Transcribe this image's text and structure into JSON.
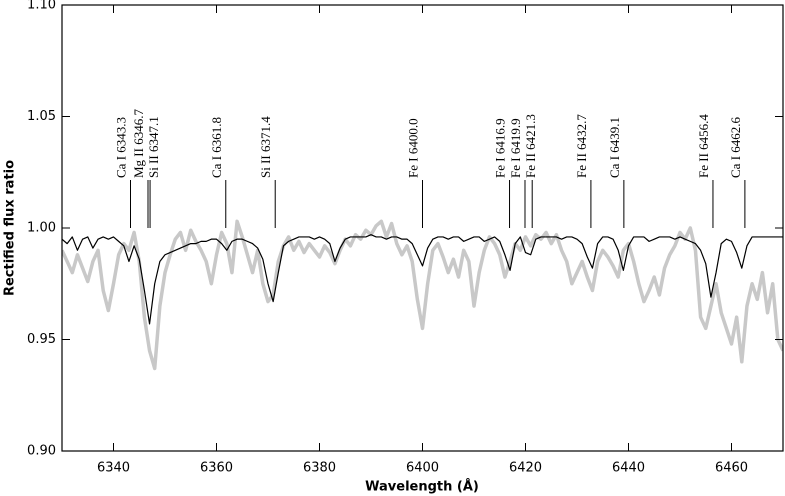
{
  "chart_data": {
    "type": "line",
    "xlabel": "Wavelength (Å)",
    "ylabel": "Rectified flux ratio",
    "xlim": [
      6330,
      6470
    ],
    "ylim": [
      0.9,
      1.1
    ],
    "xticks": [
      6340,
      6360,
      6380,
      6400,
      6420,
      6440,
      6460
    ],
    "yticks": [
      {
        "value": 0.9,
        "label": "0.90"
      },
      {
        "value": 0.95,
        "label": "0.95"
      },
      {
        "value": 1.0,
        "label": "1.00"
      },
      {
        "value": 1.05,
        "label": "1.05"
      },
      {
        "value": 1.1,
        "label": "1.10"
      }
    ],
    "x": [
      6330,
      6331,
      6332,
      6333,
      6334,
      6335,
      6336,
      6337,
      6338,
      6339,
      6340,
      6341,
      6342,
      6343,
      6344,
      6345,
      6346,
      6347,
      6348,
      6349,
      6350,
      6351,
      6352,
      6353,
      6354,
      6355,
      6356,
      6357,
      6358,
      6359,
      6360,
      6361,
      6362,
      6363,
      6364,
      6365,
      6366,
      6367,
      6368,
      6369,
      6370,
      6371,
      6372,
      6373,
      6374,
      6375,
      6376,
      6377,
      6378,
      6379,
      6380,
      6381,
      6382,
      6383,
      6384,
      6385,
      6386,
      6387,
      6388,
      6389,
      6390,
      6391,
      6392,
      6393,
      6394,
      6395,
      6396,
      6397,
      6398,
      6399,
      6400,
      6401,
      6402,
      6403,
      6404,
      6405,
      6406,
      6407,
      6408,
      6409,
      6410,
      6411,
      6412,
      6413,
      6414,
      6415,
      6416,
      6417,
      6418,
      6419,
      6420,
      6421,
      6422,
      6423,
      6424,
      6425,
      6426,
      6427,
      6428,
      6429,
      6430,
      6431,
      6432,
      6433,
      6434,
      6435,
      6436,
      6437,
      6438,
      6439,
      6440,
      6441,
      6442,
      6443,
      6444,
      6445,
      6446,
      6447,
      6448,
      6449,
      6450,
      6451,
      6452,
      6453,
      6454,
      6455,
      6456,
      6457,
      6458,
      6459,
      6460,
      6461,
      6462,
      6463,
      6464,
      6465,
      6466,
      6467,
      6468,
      6469,
      6470
    ],
    "series": [
      {
        "color": "#c8c8c8",
        "width": 3.5,
        "values": [
          0.99,
          0.985,
          0.98,
          0.988,
          0.982,
          0.976,
          0.985,
          0.99,
          0.972,
          0.963,
          0.975,
          0.988,
          0.993,
          0.99,
          0.998,
          0.985,
          0.96,
          0.945,
          0.937,
          0.965,
          0.98,
          0.988,
          0.995,
          0.998,
          0.99,
          0.999,
          0.994,
          0.99,
          0.985,
          0.975,
          0.988,
          0.998,
          0.993,
          0.98,
          1.003,
          0.996,
          0.988,
          0.98,
          0.99,
          0.975,
          0.967,
          0.97,
          0.985,
          0.992,
          0.996,
          0.99,
          0.994,
          0.989,
          0.993,
          0.99,
          0.987,
          0.992,
          0.989,
          0.984,
          0.99,
          0.995,
          0.992,
          0.997,
          0.995,
          0.999,
          0.997,
          1.001,
          1.003,
          0.996,
          1.002,
          0.993,
          0.988,
          0.992,
          0.985,
          0.968,
          0.955,
          0.975,
          0.99,
          0.993,
          0.987,
          0.98,
          0.986,
          0.978,
          0.99,
          0.985,
          0.965,
          0.98,
          0.99,
          0.996,
          0.993,
          0.988,
          0.978,
          0.985,
          0.993,
          0.99,
          0.996,
          0.992,
          0.997,
          0.995,
          0.998,
          0.993,
          0.997,
          0.99,
          0.985,
          0.975,
          0.98,
          0.985,
          0.978,
          0.972,
          0.985,
          0.99,
          0.987,
          0.983,
          0.978,
          0.99,
          0.993,
          0.985,
          0.975,
          0.967,
          0.972,
          0.978,
          0.97,
          0.982,
          0.988,
          0.992,
          0.998,
          0.995,
          1.0,
          0.99,
          0.96,
          0.955,
          0.965,
          0.975,
          0.962,
          0.955,
          0.948,
          0.96,
          0.94,
          0.965,
          0.975,
          0.968,
          0.98,
          0.962,
          0.975,
          0.95,
          0.945
        ]
      },
      {
        "color": "#000000",
        "width": 1.2,
        "values": [
          0.995,
          0.993,
          0.996,
          0.99,
          0.995,
          0.996,
          0.991,
          0.995,
          0.996,
          0.995,
          0.996,
          0.994,
          0.992,
          0.985,
          0.992,
          0.986,
          0.972,
          0.957,
          0.975,
          0.985,
          0.988,
          0.989,
          0.99,
          0.991,
          0.992,
          0.993,
          0.993,
          0.994,
          0.994,
          0.995,
          0.995,
          0.993,
          0.99,
          0.994,
          0.995,
          0.995,
          0.994,
          0.993,
          0.991,
          0.986,
          0.975,
          0.967,
          0.98,
          0.992,
          0.994,
          0.995,
          0.996,
          0.996,
          0.996,
          0.995,
          0.996,
          0.995,
          0.993,
          0.985,
          0.991,
          0.995,
          0.996,
          0.996,
          0.996,
          0.996,
          0.997,
          0.996,
          0.996,
          0.995,
          0.996,
          0.996,
          0.995,
          0.995,
          0.993,
          0.988,
          0.983,
          0.991,
          0.995,
          0.996,
          0.996,
          0.995,
          0.996,
          0.996,
          0.994,
          0.995,
          0.996,
          0.996,
          0.994,
          0.995,
          0.996,
          0.994,
          0.988,
          0.981,
          0.993,
          0.996,
          0.989,
          0.988,
          0.995,
          0.996,
          0.996,
          0.996,
          0.996,
          0.995,
          0.996,
          0.996,
          0.995,
          0.993,
          0.987,
          0.982,
          0.993,
          0.996,
          0.996,
          0.995,
          0.99,
          0.981,
          0.992,
          0.996,
          0.996,
          0.996,
          0.994,
          0.995,
          0.996,
          0.996,
          0.996,
          0.995,
          0.996,
          0.995,
          0.994,
          0.993,
          0.99,
          0.984,
          0.969,
          0.98,
          0.993,
          0.995,
          0.994,
          0.989,
          0.982,
          0.992,
          0.996,
          0.996,
          0.996,
          0.996,
          0.996,
          0.996,
          0.996
        ]
      }
    ],
    "annotations": [
      {
        "label": "Ca I 6343.3",
        "x": 6343.3
      },
      {
        "label": "Mg II 6346.7",
        "x": 6346.7
      },
      {
        "label": "Si II 6347.1",
        "x": 6347.1
      },
      {
        "label": "Ca I 6361.8",
        "x": 6361.8
      },
      {
        "label": "Si II 6371.4",
        "x": 6371.4
      },
      {
        "label": "Fe I 6400.0",
        "x": 6400.0
      },
      {
        "label": "Fe I 6416.9",
        "x": 6416.9
      },
      {
        "label": "Fe I 6419.9",
        "x": 6419.9
      },
      {
        "label": "Fe II 6421.3",
        "x": 6421.3
      },
      {
        "label": "Fe II 6432.7",
        "x": 6432.7
      },
      {
        "label": "Ca I 6439.1",
        "x": 6439.1
      },
      {
        "label": "Fe II 6456.4",
        "x": 6456.4
      },
      {
        "label": "Ca I 6462.6",
        "x": 6462.6
      }
    ]
  }
}
